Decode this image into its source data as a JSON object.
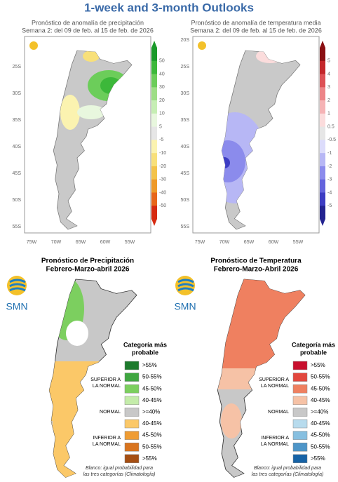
{
  "title": "1-week and 3-month Outlooks",
  "weekly": [
    {
      "title": "Pronóstico de anomalía de precipitación",
      "subtitle": "Semana 2: del 09 de feb. al 15 de feb. de 2026",
      "lat_labels": [
        "25S",
        "30S",
        "35S",
        "40S",
        "45S",
        "50S",
        "55S"
      ],
      "lon_labels": [
        "75W",
        "70W",
        "65W",
        "60W",
        "55W"
      ],
      "scale": {
        "labels": [
          50,
          40,
          30,
          20,
          10,
          5,
          -5,
          -10,
          -20,
          -30,
          -40,
          -50
        ],
        "colors": [
          "#1a9a2a",
          "#3cb83a",
          "#6ccd5a",
          "#9ede86",
          "#c6eeb4",
          "#e8f7de",
          "#e6e6e6",
          "#fbf3b0",
          "#f8e07a",
          "#f3c34a",
          "#ee9a2a",
          "#e7661a",
          "#d62a10"
        ]
      }
    },
    {
      "title": "Pronóstico de anomalía de temperatura media",
      "subtitle": "Semana 2: del 09 de feb. al 15 de feb. de 2026",
      "lat_labels": [
        "20S",
        "25S",
        "30S",
        "35S",
        "40S",
        "45S",
        "50S",
        "55S"
      ],
      "lon_labels": [
        "75W",
        "70W",
        "65W",
        "60W",
        "55W"
      ],
      "scale": {
        "labels": [
          5,
          4,
          3,
          2,
          1,
          0.5,
          -0.5,
          -1,
          -2,
          -3,
          -4,
          -5
        ],
        "colors": [
          "#8a0f12",
          "#c3262a",
          "#dd5055",
          "#ec8487",
          "#f5b3b5",
          "#fbdcdc",
          "#e6e6e6",
          "#dcdcfb",
          "#b7b7f5",
          "#8b8bec",
          "#6464dd",
          "#3d3dc3",
          "#232390"
        ]
      }
    }
  ],
  "seasonal": [
    {
      "title": "Pronóstico de Precipitación",
      "subtitle": "Febrero-Marzo-abril 2026",
      "logo": "SMN",
      "legend_title": [
        "Categoría más",
        "probable"
      ],
      "groups": [
        [
          "SUPERIOR A",
          "LA NORMAL"
        ],
        [
          "NORMAL"
        ],
        [
          "INFERIOR A",
          "LA NORMAL"
        ]
      ],
      "entries": [
        {
          "label": ">55%",
          "color": "#1d7a2c"
        },
        {
          "label": "50-55%",
          "color": "#3fa640"
        },
        {
          "label": "45-50%",
          "color": "#7ccf5f"
        },
        {
          "label": "40-45%",
          "color": "#c4ecaa"
        },
        {
          "label": ">=40%",
          "color": "#c8c8c8"
        },
        {
          "label": "40-45%",
          "color": "#fbc868"
        },
        {
          "label": "45-50%",
          "color": "#ef9c33"
        },
        {
          "label": "50-55%",
          "color": "#d9741e"
        },
        {
          "label": ">55%",
          "color": "#a54e12"
        }
      ],
      "note": [
        "Blanco: igual probabilidad para",
        "las tres categorías (Climatología)"
      ]
    },
    {
      "title": "Pronóstico de Temperatura",
      "subtitle": "Febrero-Marzo-Abril 2026",
      "logo": "SMN",
      "legend_title": [
        "Categoría más",
        "probable"
      ],
      "groups": [
        [
          "SUPERIOR A",
          "LA NORMAL"
        ],
        [
          "NORMAL"
        ],
        [
          "INFERIOR A",
          "LA NORMAL"
        ]
      ],
      "entries": [
        {
          "label": ">55%",
          "color": "#c8102e"
        },
        {
          "label": "50-55%",
          "color": "#e2473d"
        },
        {
          "label": "45-50%",
          "color": "#ef8060"
        },
        {
          "label": "40-45%",
          "color": "#f6c2a6"
        },
        {
          "label": ">=40%",
          "color": "#c8c8c8"
        },
        {
          "label": "40-45%",
          "color": "#b7dbed"
        },
        {
          "label": "45-50%",
          "color": "#86bfe0"
        },
        {
          "label": "50-55%",
          "color": "#4d95c8"
        },
        {
          "label": ">55%",
          "color": "#1763a6"
        }
      ],
      "note": [
        "Blanco: igual probabilidad para",
        "las tres categorías (Climatología)"
      ]
    }
  ]
}
